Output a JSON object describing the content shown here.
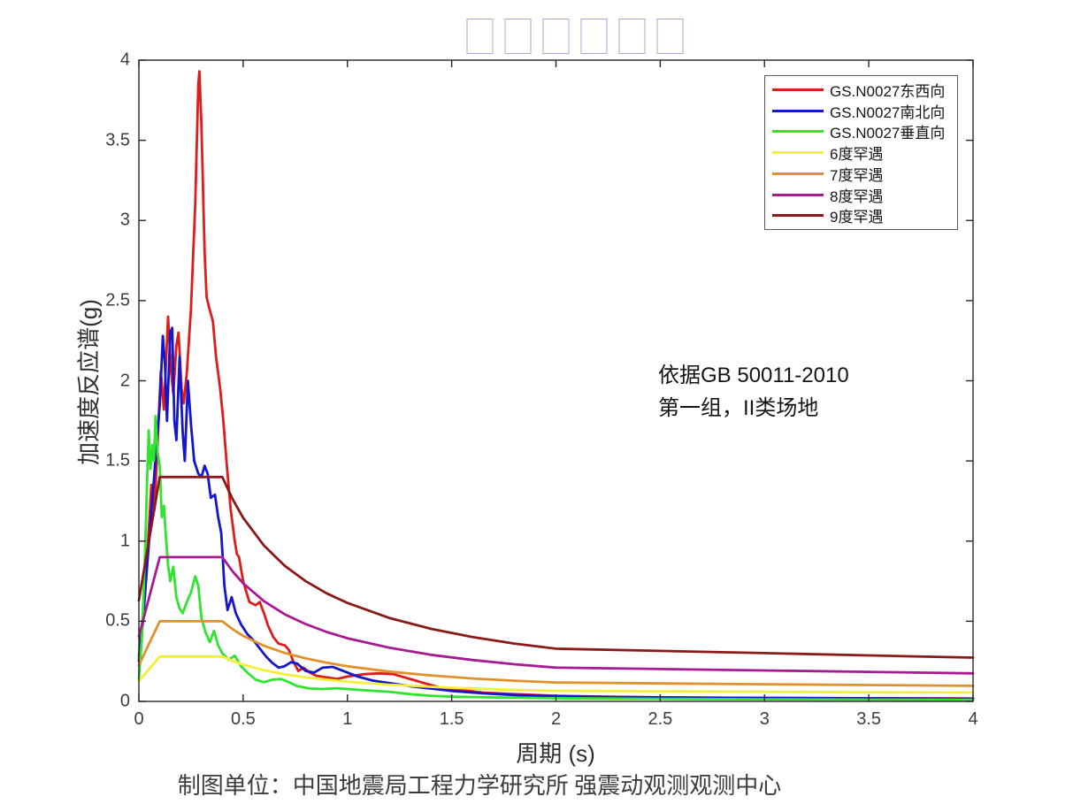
{
  "title": {
    "glyphs": "□□□□□□",
    "box_color": "#a6a6d8"
  },
  "annotation": {
    "line1": "依据GB 50011-2010",
    "line2": "第一组，II类场地"
  },
  "caption": "制图单位：中国地震局工程力学研究所 强震动观测观测中心",
  "colors": {
    "axis": "#262626",
    "tick_text": "#3d3d3d"
  },
  "chart_data": {
    "type": "line",
    "title": "□□□□□□",
    "xlabel": "周期 (s)",
    "ylabel": "加速度反应谱(g)",
    "xlim": [
      0,
      4
    ],
    "ylim": [
      0,
      4
    ],
    "grid": false,
    "legend_position": "top-right",
    "x_ticks": {
      "values": [
        0,
        0.5,
        1,
        1.5,
        2,
        2.5,
        3,
        3.5,
        4
      ],
      "labels": [
        "0",
        "0.5",
        "1",
        "1.5",
        "2",
        "2.5",
        "3",
        "3.5",
        "4"
      ]
    },
    "y_ticks": {
      "values": [
        0,
        0.5,
        1,
        1.5,
        2,
        2.5,
        3,
        3.5,
        4
      ],
      "labels": [
        "0",
        "0.5",
        "1",
        "1.5",
        "2",
        "2.5",
        "3",
        "3.5",
        "4"
      ]
    },
    "series": [
      {
        "name": "GS.N0027东西向",
        "color": "#dd1c1c",
        "points": [
          [
            0,
            0.28
          ],
          [
            0.02,
            0.55
          ],
          [
            0.04,
            0.9
          ],
          [
            0.06,
            1.35
          ],
          [
            0.075,
            1.2
          ],
          [
            0.09,
            1.62
          ],
          [
            0.105,
            2.06
          ],
          [
            0.12,
            1.82
          ],
          [
            0.14,
            2.4
          ],
          [
            0.155,
            2.05
          ],
          [
            0.165,
            1.92
          ],
          [
            0.18,
            2.22
          ],
          [
            0.19,
            2.3
          ],
          [
            0.205,
            1.95
          ],
          [
            0.215,
            1.86
          ],
          [
            0.23,
            2.05
          ],
          [
            0.25,
            2.45
          ],
          [
            0.27,
            3.1
          ],
          [
            0.285,
            3.85
          ],
          [
            0.29,
            3.93
          ],
          [
            0.3,
            3.6
          ],
          [
            0.315,
            2.8
          ],
          [
            0.325,
            2.52
          ],
          [
            0.34,
            2.44
          ],
          [
            0.355,
            2.37
          ],
          [
            0.37,
            2.15
          ],
          [
            0.39,
            1.95
          ],
          [
            0.405,
            1.75
          ],
          [
            0.42,
            1.5
          ],
          [
            0.44,
            1.2
          ],
          [
            0.46,
            1.0
          ],
          [
            0.47,
            0.92
          ],
          [
            0.48,
            0.9
          ],
          [
            0.5,
            0.75
          ],
          [
            0.53,
            0.62
          ],
          [
            0.56,
            0.6
          ],
          [
            0.58,
            0.62
          ],
          [
            0.6,
            0.55
          ],
          [
            0.62,
            0.47
          ],
          [
            0.645,
            0.4
          ],
          [
            0.67,
            0.36
          ],
          [
            0.7,
            0.35
          ],
          [
            0.72,
            0.32
          ],
          [
            0.74,
            0.25
          ],
          [
            0.765,
            0.19
          ],
          [
            0.79,
            0.21
          ],
          [
            0.82,
            0.18
          ],
          [
            0.85,
            0.16
          ],
          [
            0.9,
            0.15
          ],
          [
            0.95,
            0.14
          ],
          [
            1.0,
            0.155
          ],
          [
            1.08,
            0.17
          ],
          [
            1.15,
            0.175
          ],
          [
            1.22,
            0.17
          ],
          [
            1.3,
            0.14
          ],
          [
            1.38,
            0.11
          ],
          [
            1.45,
            0.085
          ],
          [
            1.55,
            0.07
          ],
          [
            1.65,
            0.055
          ],
          [
            1.8,
            0.045
          ],
          [
            2.0,
            0.035
          ],
          [
            2.3,
            0.028
          ],
          [
            2.6,
            0.024
          ],
          [
            3.0,
            0.022
          ],
          [
            3.5,
            0.02
          ],
          [
            4.0,
            0.019
          ]
        ]
      },
      {
        "name": "GS.N0027南北向",
        "color": "#1515cd",
        "points": [
          [
            0,
            0.25
          ],
          [
            0.02,
            0.5
          ],
          [
            0.04,
            0.85
          ],
          [
            0.055,
            1.1
          ],
          [
            0.07,
            1.35
          ],
          [
            0.085,
            1.6
          ],
          [
            0.1,
            1.85
          ],
          [
            0.115,
            2.28
          ],
          [
            0.125,
            2.1
          ],
          [
            0.135,
            1.75
          ],
          [
            0.15,
            2.3
          ],
          [
            0.16,
            2.33
          ],
          [
            0.17,
            1.75
          ],
          [
            0.18,
            1.63
          ],
          [
            0.195,
            2.15
          ],
          [
            0.21,
            1.68
          ],
          [
            0.22,
            1.5
          ],
          [
            0.235,
            2.0
          ],
          [
            0.25,
            1.73
          ],
          [
            0.265,
            1.5
          ],
          [
            0.285,
            1.42
          ],
          [
            0.3,
            1.4
          ],
          [
            0.315,
            1.47
          ],
          [
            0.33,
            1.42
          ],
          [
            0.345,
            1.27
          ],
          [
            0.365,
            1.29
          ],
          [
            0.38,
            1.15
          ],
          [
            0.395,
            1.05
          ],
          [
            0.41,
            0.72
          ],
          [
            0.425,
            0.57
          ],
          [
            0.445,
            0.65
          ],
          [
            0.465,
            0.55
          ],
          [
            0.49,
            0.48
          ],
          [
            0.52,
            0.42
          ],
          [
            0.55,
            0.38
          ],
          [
            0.58,
            0.33
          ],
          [
            0.61,
            0.28
          ],
          [
            0.64,
            0.24
          ],
          [
            0.67,
            0.21
          ],
          [
            0.7,
            0.22
          ],
          [
            0.73,
            0.245
          ],
          [
            0.76,
            0.235
          ],
          [
            0.8,
            0.19
          ],
          [
            0.84,
            0.18
          ],
          [
            0.88,
            0.21
          ],
          [
            0.93,
            0.215
          ],
          [
            0.98,
            0.19
          ],
          [
            1.05,
            0.155
          ],
          [
            1.12,
            0.13
          ],
          [
            1.2,
            0.115
          ],
          [
            1.3,
            0.095
          ],
          [
            1.4,
            0.08
          ],
          [
            1.5,
            0.065
          ],
          [
            1.65,
            0.05
          ],
          [
            1.8,
            0.04
          ],
          [
            2.0,
            0.032
          ],
          [
            2.3,
            0.027
          ],
          [
            2.7,
            0.023
          ],
          [
            3.0,
            0.021
          ],
          [
            3.5,
            0.018
          ],
          [
            4.0,
            0.016
          ]
        ]
      },
      {
        "name": "GS.N0027垂直向",
        "color": "#30e430",
        "points": [
          [
            0,
            0.14
          ],
          [
            0.015,
            0.4
          ],
          [
            0.03,
            0.95
          ],
          [
            0.04,
            1.4
          ],
          [
            0.047,
            1.69
          ],
          [
            0.055,
            1.45
          ],
          [
            0.065,
            1.6
          ],
          [
            0.072,
            1.5
          ],
          [
            0.08,
            1.78
          ],
          [
            0.09,
            1.55
          ],
          [
            0.1,
            1.47
          ],
          [
            0.11,
            1.15
          ],
          [
            0.12,
            1.22
          ],
          [
            0.13,
            1.02
          ],
          [
            0.14,
            0.85
          ],
          [
            0.15,
            0.75
          ],
          [
            0.165,
            0.84
          ],
          [
            0.18,
            0.65
          ],
          [
            0.195,
            0.58
          ],
          [
            0.21,
            0.55
          ],
          [
            0.23,
            0.62
          ],
          [
            0.25,
            0.68
          ],
          [
            0.27,
            0.78
          ],
          [
            0.285,
            0.72
          ],
          [
            0.3,
            0.52
          ],
          [
            0.32,
            0.43
          ],
          [
            0.34,
            0.37
          ],
          [
            0.36,
            0.44
          ],
          [
            0.38,
            0.35
          ],
          [
            0.4,
            0.3
          ],
          [
            0.43,
            0.26
          ],
          [
            0.46,
            0.285
          ],
          [
            0.49,
            0.22
          ],
          [
            0.52,
            0.18
          ],
          [
            0.56,
            0.135
          ],
          [
            0.6,
            0.12
          ],
          [
            0.64,
            0.135
          ],
          [
            0.68,
            0.14
          ],
          [
            0.72,
            0.12
          ],
          [
            0.76,
            0.095
          ],
          [
            0.82,
            0.08
          ],
          [
            0.88,
            0.077
          ],
          [
            0.95,
            0.082
          ],
          [
            1.02,
            0.075
          ],
          [
            1.1,
            0.068
          ],
          [
            1.2,
            0.06
          ],
          [
            1.3,
            0.045
          ],
          [
            1.4,
            0.035
          ],
          [
            1.5,
            0.03
          ],
          [
            1.7,
            0.025
          ],
          [
            2.0,
            0.02
          ],
          [
            2.5,
            0.016
          ],
          [
            3.0,
            0.013
          ],
          [
            3.5,
            0.011
          ],
          [
            4.0,
            0.01
          ]
        ]
      },
      {
        "name": "6度罕遇",
        "color": "#f3ef39",
        "points": [
          [
            0,
            0.126
          ],
          [
            0.05,
            0.203
          ],
          [
            0.1,
            0.28
          ],
          [
            0.2,
            0.28
          ],
          [
            0.3,
            0.28
          ],
          [
            0.4,
            0.28
          ],
          [
            0.45,
            0.252
          ],
          [
            0.5,
            0.229
          ],
          [
            0.6,
            0.194
          ],
          [
            0.7,
            0.169
          ],
          [
            0.8,
            0.15
          ],
          [
            0.9,
            0.135
          ],
          [
            1.0,
            0.123
          ],
          [
            1.2,
            0.104
          ],
          [
            1.4,
            0.091
          ],
          [
            1.6,
            0.08
          ],
          [
            1.8,
            0.072
          ],
          [
            2.0,
            0.066
          ],
          [
            2.5,
            0.063
          ],
          [
            3.0,
            0.06
          ],
          [
            3.5,
            0.057
          ],
          [
            4.0,
            0.055
          ]
        ]
      },
      {
        "name": "7度罕遇",
        "color": "#e2902b",
        "points": [
          [
            0,
            0.225
          ],
          [
            0.05,
            0.363
          ],
          [
            0.1,
            0.5
          ],
          [
            0.2,
            0.5
          ],
          [
            0.3,
            0.5
          ],
          [
            0.4,
            0.5
          ],
          [
            0.45,
            0.45
          ],
          [
            0.5,
            0.409
          ],
          [
            0.6,
            0.347
          ],
          [
            0.7,
            0.302
          ],
          [
            0.8,
            0.268
          ],
          [
            0.9,
            0.241
          ],
          [
            1.0,
            0.219
          ],
          [
            1.2,
            0.186
          ],
          [
            1.4,
            0.162
          ],
          [
            1.6,
            0.143
          ],
          [
            1.8,
            0.129
          ],
          [
            2.0,
            0.118
          ],
          [
            2.5,
            0.112
          ],
          [
            3.0,
            0.107
          ],
          [
            3.5,
            0.102
          ],
          [
            4.0,
            0.097
          ]
        ]
      },
      {
        "name": "8度罕遇",
        "color": "#a81a93",
        "points": [
          [
            0,
            0.405
          ],
          [
            0.05,
            0.653
          ],
          [
            0.1,
            0.9
          ],
          [
            0.2,
            0.9
          ],
          [
            0.3,
            0.9
          ],
          [
            0.4,
            0.9
          ],
          [
            0.45,
            0.81
          ],
          [
            0.5,
            0.736
          ],
          [
            0.6,
            0.625
          ],
          [
            0.7,
            0.543
          ],
          [
            0.8,
            0.482
          ],
          [
            0.9,
            0.433
          ],
          [
            1.0,
            0.394
          ],
          [
            1.2,
            0.335
          ],
          [
            1.4,
            0.291
          ],
          [
            1.6,
            0.258
          ],
          [
            1.8,
            0.232
          ],
          [
            2.0,
            0.211
          ],
          [
            2.5,
            0.202
          ],
          [
            3.0,
            0.193
          ],
          [
            3.5,
            0.184
          ],
          [
            4.0,
            0.175
          ]
        ]
      },
      {
        "name": "9度罕遇",
        "color": "#8a1a1a",
        "points": [
          [
            0,
            0.63
          ],
          [
            0.05,
            1.015
          ],
          [
            0.1,
            1.4
          ],
          [
            0.2,
            1.4
          ],
          [
            0.3,
            1.4
          ],
          [
            0.4,
            1.4
          ],
          [
            0.45,
            1.26
          ],
          [
            0.5,
            1.145
          ],
          [
            0.6,
            0.972
          ],
          [
            0.7,
            0.845
          ],
          [
            0.8,
            0.75
          ],
          [
            0.9,
            0.674
          ],
          [
            1.0,
            0.614
          ],
          [
            1.2,
            0.521
          ],
          [
            1.4,
            0.453
          ],
          [
            1.6,
            0.401
          ],
          [
            1.8,
            0.361
          ],
          [
            2.0,
            0.329
          ],
          [
            2.5,
            0.315
          ],
          [
            3.0,
            0.301
          ],
          [
            3.5,
            0.287
          ],
          [
            4.0,
            0.273
          ]
        ]
      }
    ]
  }
}
